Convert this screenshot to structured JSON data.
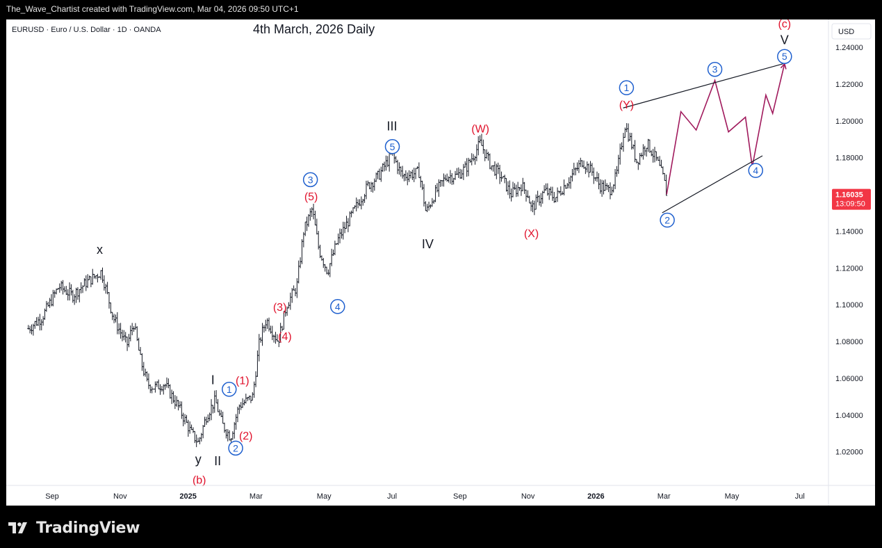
{
  "header_text": "The_Wave_Chartist created with TradingView.com, Mar 04, 2026 09:50 UTC+1",
  "footer_brand": "TradingView",
  "chart_data": {
    "type": "line",
    "symbol_line": "EURUSD · Euro / U.S. Dollar · 1D · OANDA",
    "title": "4th March, 2026 Daily",
    "currency": "USD",
    "price_label": "1.16035",
    "countdown_label": "13:09:50",
    "colors": {
      "candle": "#131722",
      "red": "#e0112b",
      "blue": "#1e5fce",
      "projection": "#a0195c",
      "price_tag": "#f23645"
    },
    "ylim": [
      1.0,
      1.25
    ],
    "y_ticks": [
      "1.24000",
      "1.22000",
      "1.20000",
      "1.18000",
      "1.16000",
      "1.14000",
      "1.12000",
      "1.10000",
      "1.08000",
      "1.06000",
      "1.04000",
      "1.02000"
    ],
    "x_ticks": [
      {
        "label": "Sep",
        "month": 0,
        "bold": false
      },
      {
        "label": "Nov",
        "month": 2,
        "bold": false
      },
      {
        "label": "2025",
        "month": 4,
        "bold": true
      },
      {
        "label": "Mar",
        "month": 6,
        "bold": false
      },
      {
        "label": "May",
        "month": 8,
        "bold": false
      },
      {
        "label": "Jul",
        "month": 10,
        "bold": false
      },
      {
        "label": "Sep",
        "month": 12,
        "bold": false
      },
      {
        "label": "Nov",
        "month": 14,
        "bold": false
      },
      {
        "label": "2026",
        "month": 16,
        "bold": true
      },
      {
        "label": "Mar",
        "month": 18,
        "bold": false
      },
      {
        "label": "May",
        "month": 20,
        "bold": false
      },
      {
        "label": "Jul",
        "month": 22,
        "bold": false
      }
    ],
    "price_path": [
      [
        -0.7,
        1.087
      ],
      [
        -0.3,
        1.093
      ],
      [
        0.2,
        1.11
      ],
      [
        0.6,
        1.105
      ],
      [
        1.0,
        1.112
      ],
      [
        1.45,
        1.118
      ],
      [
        1.8,
        1.093
      ],
      [
        2.2,
        1.078
      ],
      [
        2.4,
        1.09
      ],
      [
        2.6,
        1.07
      ],
      [
        2.8,
        1.057
      ],
      [
        3.0,
        1.055
      ],
      [
        3.3,
        1.057
      ],
      [
        3.7,
        1.045
      ],
      [
        4.1,
        1.03
      ],
      [
        4.3,
        1.025
      ],
      [
        4.55,
        1.04
      ],
      [
        4.8,
        1.048
      ],
      [
        5.0,
        1.035
      ],
      [
        5.25,
        1.028
      ],
      [
        5.5,
        1.045
      ],
      [
        5.9,
        1.05
      ],
      [
        6.1,
        1.08
      ],
      [
        6.3,
        1.092
      ],
      [
        6.65,
        1.08
      ],
      [
        6.9,
        1.1
      ],
      [
        7.2,
        1.11
      ],
      [
        7.4,
        1.14
      ],
      [
        7.65,
        1.152
      ],
      [
        7.85,
        1.13
      ],
      [
        8.1,
        1.118
      ],
      [
        8.4,
        1.135
      ],
      [
        8.7,
        1.145
      ],
      [
        9.0,
        1.155
      ],
      [
        9.3,
        1.165
      ],
      [
        9.6,
        1.17
      ],
      [
        10.0,
        1.182
      ],
      [
        10.3,
        1.17
      ],
      [
        10.8,
        1.172
      ],
      [
        11.0,
        1.15
      ],
      [
        11.25,
        1.16
      ],
      [
        11.6,
        1.17
      ],
      [
        11.9,
        1.17
      ],
      [
        12.2,
        1.175
      ],
      [
        12.6,
        1.188
      ],
      [
        12.9,
        1.176
      ],
      [
        13.2,
        1.17
      ],
      [
        13.5,
        1.16
      ],
      [
        13.8,
        1.165
      ],
      [
        14.0,
        1.16
      ],
      [
        14.1,
        1.152
      ],
      [
        14.5,
        1.162
      ],
      [
        14.8,
        1.158
      ],
      [
        15.2,
        1.168
      ],
      [
        15.6,
        1.178
      ],
      [
        15.9,
        1.172
      ],
      [
        16.1,
        1.165
      ],
      [
        16.4,
        1.162
      ],
      [
        16.6,
        1.17
      ],
      [
        16.85,
        1.198
      ],
      [
        17.0,
        1.19
      ],
      [
        17.2,
        1.178
      ],
      [
        17.5,
        1.188
      ],
      [
        17.8,
        1.178
      ],
      [
        18.0,
        1.168
      ],
      [
        18.08,
        1.16
      ]
    ],
    "projection_path": [
      [
        18.08,
        1.16
      ],
      [
        18.5,
        1.205
      ],
      [
        18.95,
        1.195
      ],
      [
        19.5,
        1.222
      ],
      [
        19.9,
        1.194
      ],
      [
        20.4,
        1.202
      ],
      [
        20.6,
        1.175
      ],
      [
        21.0,
        1.214
      ],
      [
        21.2,
        1.204
      ],
      [
        21.55,
        1.231
      ]
    ],
    "channel_lines": [
      {
        "from": [
          16.8,
          1.207
        ],
        "to": [
          21.5,
          1.231
        ]
      },
      {
        "from": [
          17.95,
          1.15
        ],
        "to": [
          20.9,
          1.181
        ]
      }
    ],
    "wave_labels": [
      {
        "text": "x",
        "month": 1.4,
        "price": 1.13,
        "style": "black"
      },
      {
        "text": "y",
        "month": 4.3,
        "price": 1.016,
        "style": "black"
      },
      {
        "text": "(b)",
        "month": 4.33,
        "price": 1.005,
        "style": "red"
      },
      {
        "text": "I",
        "month": 4.73,
        "price": 1.059,
        "style": "black"
      },
      {
        "text": "II",
        "month": 4.87,
        "price": 1.015,
        "style": "black"
      },
      {
        "text": "(1)",
        "month": 5.6,
        "price": 1.059,
        "style": "red"
      },
      {
        "text": "(2)",
        "month": 5.7,
        "price": 1.029,
        "style": "red"
      },
      {
        "text": "1",
        "month": 5.21,
        "price": 1.054,
        "style": "circle"
      },
      {
        "text": "2",
        "month": 5.4,
        "price": 1.022,
        "style": "circle"
      },
      {
        "text": "(3)",
        "month": 6.7,
        "price": 1.099,
        "style": "red"
      },
      {
        "text": "(4)",
        "month": 6.85,
        "price": 1.083,
        "style": "red"
      },
      {
        "text": "(5)",
        "month": 7.62,
        "price": 1.159,
        "style": "red"
      },
      {
        "text": "3",
        "month": 7.6,
        "price": 1.168,
        "style": "circle"
      },
      {
        "text": "4",
        "month": 8.4,
        "price": 1.099,
        "style": "circle"
      },
      {
        "text": "III",
        "month": 10.0,
        "price": 1.197,
        "style": "black"
      },
      {
        "text": "5",
        "month": 10.01,
        "price": 1.186,
        "style": "circle"
      },
      {
        "text": "IV",
        "month": 11.05,
        "price": 1.133,
        "style": "black"
      },
      {
        "text": "(W)",
        "month": 12.6,
        "price": 1.196,
        "style": "red"
      },
      {
        "text": "(X)",
        "month": 14.1,
        "price": 1.139,
        "style": "red"
      },
      {
        "text": "(Y)",
        "month": 16.9,
        "price": 1.209,
        "style": "red"
      },
      {
        "text": "1",
        "month": 16.9,
        "price": 1.218,
        "style": "circle"
      },
      {
        "text": "2",
        "month": 18.1,
        "price": 1.146,
        "style": "circle"
      },
      {
        "text": "3",
        "month": 19.5,
        "price": 1.228,
        "style": "circle"
      },
      {
        "text": "4",
        "month": 20.7,
        "price": 1.173,
        "style": "circle"
      },
      {
        "text": "5",
        "month": 21.55,
        "price": 1.235,
        "style": "circle"
      },
      {
        "text": "V",
        "month": 21.55,
        "price": 1.244,
        "style": "black"
      },
      {
        "text": "(c)",
        "month": 21.55,
        "price": 1.253,
        "style": "red"
      }
    ]
  }
}
